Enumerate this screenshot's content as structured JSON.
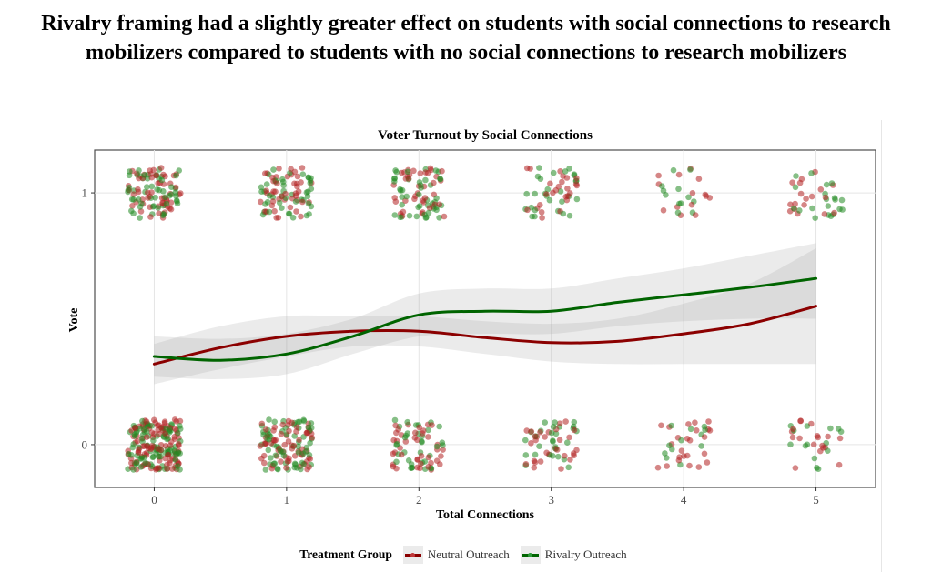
{
  "page": {
    "headline": "Rivalry framing had a slightly greater effect on students with social connections to research mobilizers compared to students with no social connections to research mobilizers"
  },
  "chart_data": {
    "type": "scatter",
    "title": "Voter Turnout by Social Connections",
    "xlabel": "Total Connections",
    "ylabel": "Vote",
    "xlim": [
      -0.45,
      5.45
    ],
    "ylim": [
      -0.17,
      1.17
    ],
    "x_ticks": [
      "0",
      "1",
      "2",
      "3",
      "4",
      "5"
    ],
    "x_tick_values": [
      0,
      1,
      2,
      3,
      4,
      5
    ],
    "y_ticks": [
      "0",
      "1"
    ],
    "y_tick_values": [
      0,
      1
    ],
    "grid": true,
    "jitter": {
      "x": 0.2,
      "y": 0.1
    },
    "legend": {
      "title": "Treatment Group",
      "placement": "bottom",
      "entries": [
        {
          "label": "Neutral Outreach",
          "color": "#8b0000"
        },
        {
          "label": "Rivalry Outreach",
          "color": "#006400"
        }
      ]
    },
    "point_counts": {
      "description": "approximate number of jittered points per (connections, vote) cluster, per group",
      "Neutral Outreach": {
        "vote_1": [
          55,
          45,
          40,
          25,
          14,
          18
        ],
        "vote_0": [
          110,
          65,
          40,
          30,
          24,
          18
        ]
      },
      "Rivalry Outreach": {
        "vote_1": [
          55,
          45,
          45,
          28,
          12,
          20
        ],
        "vote_0": [
          100,
          65,
          35,
          28,
          12,
          14
        ]
      }
    },
    "series": [
      {
        "name": "Neutral Outreach",
        "color": "#8b0000",
        "x": [
          0,
          0.5,
          1,
          1.5,
          2,
          2.5,
          3,
          3.5,
          4,
          4.5,
          5
        ],
        "y": [
          0.32,
          0.385,
          0.43,
          0.45,
          0.45,
          0.425,
          0.405,
          0.41,
          0.44,
          0.48,
          0.55
        ],
        "ci_lower": [
          0.24,
          0.3,
          0.35,
          0.39,
          0.39,
          0.36,
          0.33,
          0.32,
          0.32,
          0.32,
          0.32
        ],
        "ci_upper": [
          0.4,
          0.47,
          0.51,
          0.51,
          0.51,
          0.49,
          0.48,
          0.5,
          0.56,
          0.64,
          0.78
        ]
      },
      {
        "name": "Rivalry Outreach",
        "color": "#006400",
        "x": [
          0,
          0.5,
          1,
          1.5,
          2,
          2.5,
          3,
          3.5,
          4,
          4.5,
          5
        ],
        "y": [
          0.35,
          0.335,
          0.36,
          0.43,
          0.515,
          0.53,
          0.53,
          0.565,
          0.595,
          0.625,
          0.66
        ],
        "ci_lower": [
          0.27,
          0.26,
          0.28,
          0.36,
          0.43,
          0.44,
          0.44,
          0.47,
          0.49,
          0.5,
          0.5
        ],
        "ci_upper": [
          0.43,
          0.42,
          0.44,
          0.5,
          0.6,
          0.62,
          0.62,
          0.66,
          0.7,
          0.75,
          0.8
        ]
      }
    ]
  }
}
